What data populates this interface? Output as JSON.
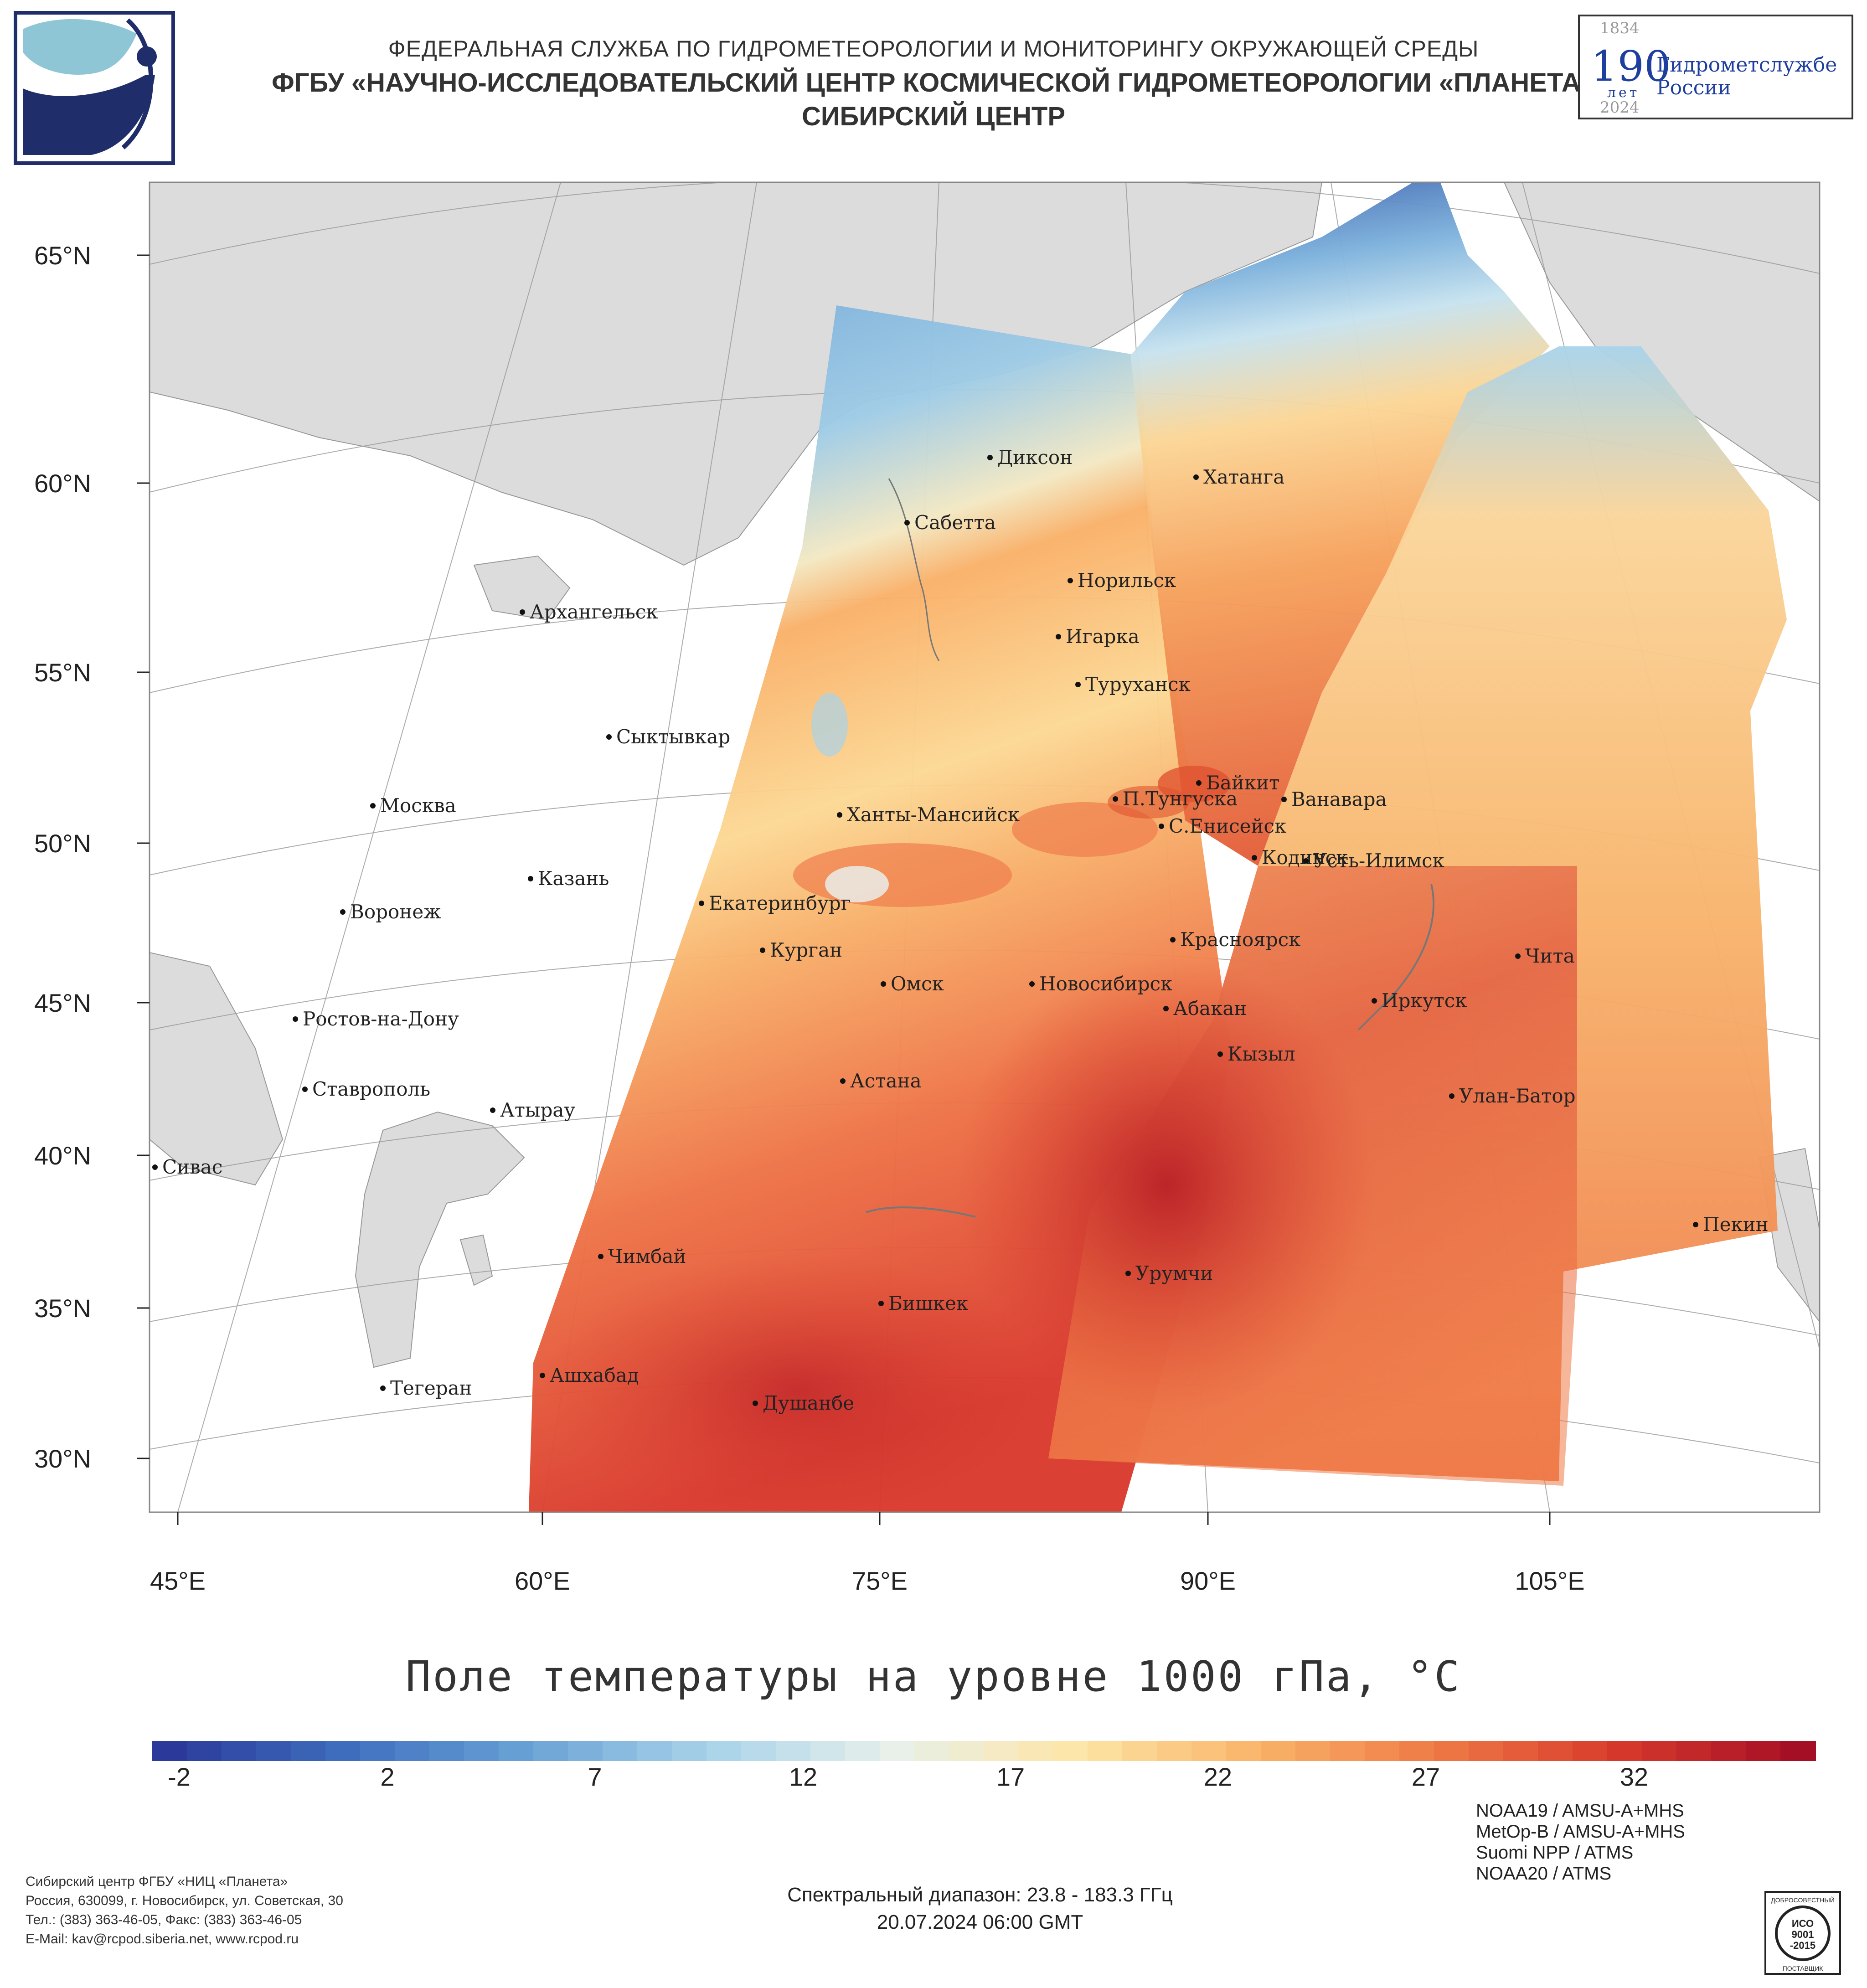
{
  "header": {
    "line1": "ФЕДЕРАЛЬНАЯ СЛУЖБА ПО ГИДРОМЕТЕОРОЛОГИИ И МОНИТОРИНГУ ОКРУЖАЮЩЕЙ СРЕДЫ",
    "line2": "ФГБУ «НАУЧНО-ИССЛЕДОВАТЕЛЬСКИЙ ЦЕНТР КОСМИЧЕСКОЙ ГИДРОМЕТЕОРОЛОГИИ «ПЛАНЕТА»",
    "line3": "СИБИРСКИЙ ЦЕНТР"
  },
  "anniversary_logo": {
    "year_start": "1834",
    "number": "190",
    "years_word": "лет",
    "org_line1": "Гидрометслужбе",
    "org_line2": "России",
    "year_end": "2024"
  },
  "map": {
    "lat_ticks": [
      "65°N",
      "60°N",
      "55°N",
      "50°N",
      "45°N",
      "40°N",
      "35°N",
      "30°N"
    ],
    "lon_ticks": [
      "45°E",
      "60°E",
      "75°E",
      "90°E",
      "105°E"
    ],
    "cities": [
      "Диксон",
      "Хатанга",
      "Сабетта",
      "Норильск",
      "Игарка",
      "Туруханск",
      "Архангельск",
      "Сыктывкар",
      "Байкит",
      "П.Тунгуска",
      "Ванавара",
      "Ханты-Мансийск",
      "С.Енисейск",
      "Москва",
      "Кодинск",
      "Усть-Илимск",
      "Казань",
      "Екатеринбург",
      "Воронеж",
      "Красноярск",
      "Курган",
      "Чита",
      "Омск",
      "Новосибирск",
      "Абакан",
      "Иркутск",
      "Ростов-на-Дону",
      "Кызыл",
      "Астана",
      "Ставрополь",
      "Улан-Батор",
      "Атырау",
      "Сивас",
      "Пекин",
      "Чимбай",
      "Урумчи",
      "Бишкек",
      "Ашхабад",
      "Тегеран",
      "Душанбе"
    ]
  },
  "title": "Поле температуры на уровне 1000 гПа, °С",
  "colorbar": {
    "labels": [
      "-2",
      "2",
      "7",
      "12",
      "17",
      "22",
      "27",
      "32"
    ],
    "colors": [
      "#2b3a9a",
      "#3f6fbf",
      "#6aa3d6",
      "#a9d3ea",
      "#e8f0ea",
      "#fde6a8",
      "#f9b56a",
      "#ef7a46",
      "#d73a2b",
      "#a50f26"
    ]
  },
  "satellites": [
    "NOAA19 / AMSU-A+MHS",
    "MetOp-B / AMSU-A+MHS",
    "Suomi NPP / ATMS",
    "NOAA20 / ATMS"
  ],
  "footer": {
    "org": "Сибирский центр ФГБУ «НИЦ «Планета»",
    "address": "Россия, 630099, г. Новосибирск, ул. Советская, 30",
    "phones": "Тел.: (383) 363-46-05, Факс: (383) 363-46-05",
    "email": "E-Mail: kav@rcpod.siberia.net, www.rcpod.ru",
    "spectral": "Спектральный диапазон: 23.8 - 183.3 ГГц",
    "datetime": "20.07.2024 06:00 GMT"
  },
  "iso_badge": {
    "top": "ДОБРОСОВЕСТНЫЙ",
    "line1": "ИСО",
    "line2": "9001",
    "line3": "-2015",
    "bottom": "ПОСТАВЩИК"
  }
}
